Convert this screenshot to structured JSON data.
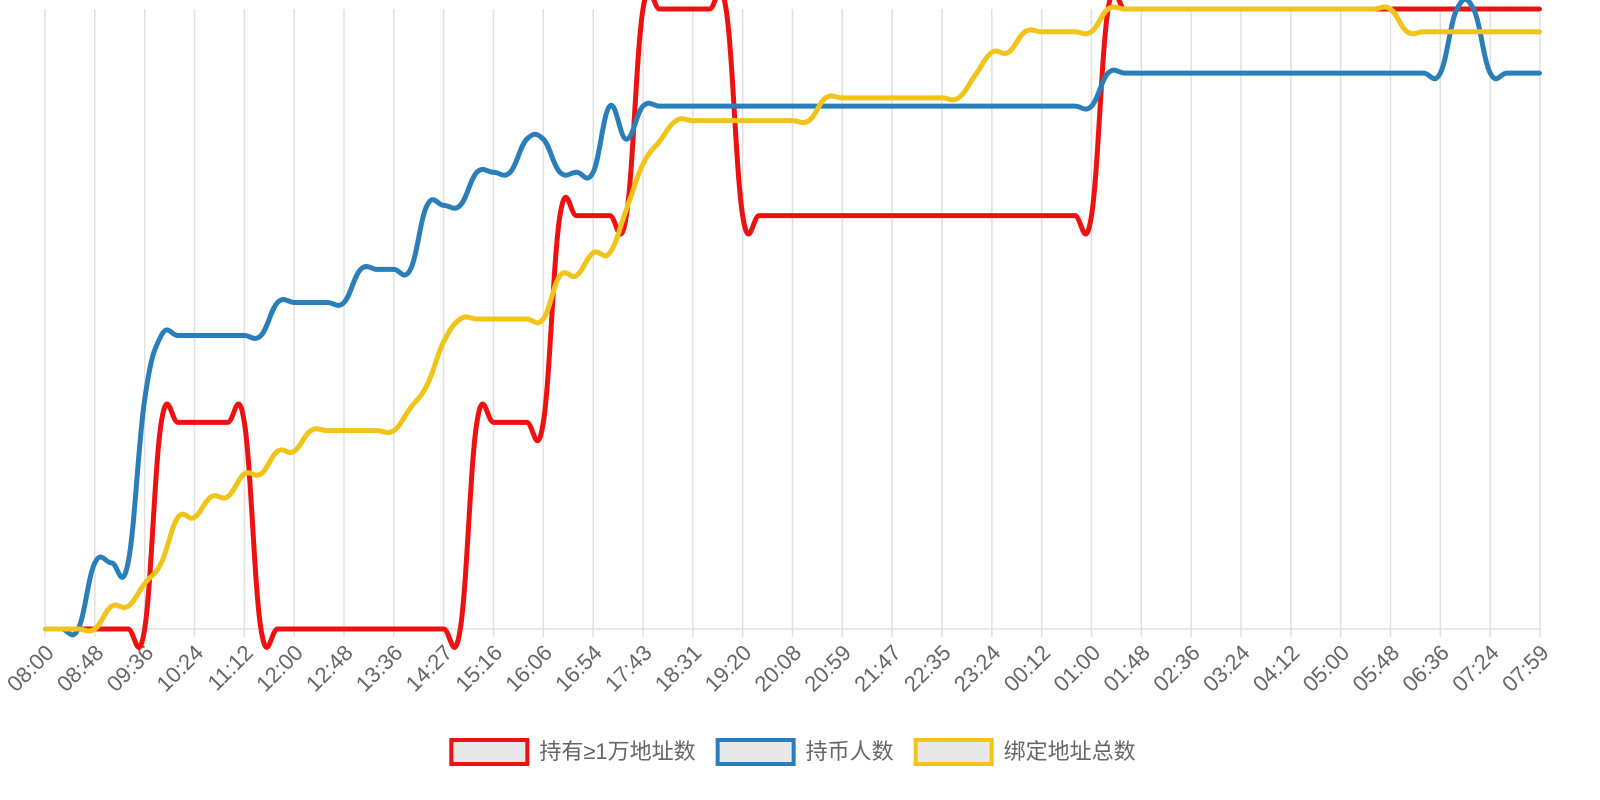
{
  "chart_data": {
    "type": "line",
    "categories": [
      "08:00",
      null,
      null,
      "08:48",
      null,
      null,
      "09:36",
      null,
      null,
      "10:24",
      null,
      null,
      "11:12",
      null,
      null,
      "12:00",
      null,
      null,
      "12:48",
      null,
      null,
      "13:36",
      null,
      null,
      "14:27",
      null,
      null,
      "15:16",
      null,
      null,
      "16:06",
      null,
      null,
      "16:54",
      null,
      null,
      "17:43",
      null,
      null,
      "18:31",
      null,
      null,
      "19:20",
      null,
      null,
      "20:08",
      null,
      null,
      "20:59",
      null,
      null,
      "21:47",
      null,
      null,
      "22:35",
      null,
      null,
      "23:24",
      null,
      null,
      "00:12",
      null,
      null,
      "01:00",
      null,
      null,
      "01:48",
      null,
      null,
      "02:36",
      null,
      null,
      "03:24",
      null,
      null,
      "04:12",
      null,
      null,
      "05:00",
      null,
      null,
      "05:48",
      null,
      null,
      "06:36",
      null,
      null,
      "07:24",
      null,
      null,
      "07:59"
    ],
    "series": [
      {
        "name": "持有≥1万地址数",
        "color": "#ee1111",
        "values": [
          0,
          0,
          0,
          0,
          0,
          0,
          0,
          1,
          1,
          1,
          1,
          1,
          1,
          0,
          0,
          0,
          0,
          0,
          0,
          0,
          0,
          0,
          0,
          0,
          0,
          0,
          1,
          1,
          1,
          1,
          1,
          2,
          2,
          2,
          2,
          2,
          3,
          3,
          3,
          3,
          3,
          3,
          2,
          2,
          2,
          2,
          2,
          2,
          2,
          2,
          2,
          2,
          2,
          2,
          2,
          2,
          2,
          2,
          2,
          2,
          2,
          2,
          2,
          2,
          3,
          3,
          3,
          3,
          3,
          3,
          3,
          3,
          3,
          3,
          3,
          3,
          3,
          3,
          3,
          3,
          3,
          3,
          3,
          3,
          3,
          3,
          3,
          3,
          3,
          3,
          3
        ]
      },
      {
        "name": "持币人数",
        "color": "#2a7fba",
        "values": [
          0,
          0,
          0,
          0.32,
          0.32,
          0.32,
          1.11,
          1.42,
          1.42,
          1.42,
          1.42,
          1.42,
          1.42,
          1.42,
          1.58,
          1.58,
          1.58,
          1.58,
          1.58,
          1.74,
          1.74,
          1.74,
          1.74,
          2.05,
          2.05,
          2.05,
          2.21,
          2.21,
          2.21,
          2.37,
          2.37,
          2.21,
          2.21,
          2.21,
          2.53,
          2.37,
          2.53,
          2.53,
          2.53,
          2.53,
          2.53,
          2.53,
          2.53,
          2.53,
          2.53,
          2.53,
          2.53,
          2.53,
          2.53,
          2.53,
          2.53,
          2.53,
          2.53,
          2.53,
          2.53,
          2.53,
          2.53,
          2.53,
          2.53,
          2.53,
          2.53,
          2.53,
          2.53,
          2.53,
          2.69,
          2.69,
          2.69,
          2.69,
          2.69,
          2.69,
          2.69,
          2.69,
          2.69,
          2.69,
          2.69,
          2.69,
          2.69,
          2.69,
          2.69,
          2.69,
          2.69,
          2.69,
          2.69,
          2.69,
          2.69,
          3,
          3,
          2.69,
          2.69,
          2.69,
          2.69
        ]
      },
      {
        "name": "绑定地址总数",
        "color": "#f0c419",
        "values": [
          0,
          0,
          0,
          0,
          0.11,
          0.11,
          0.22,
          0.32,
          0.54,
          0.54,
          0.64,
          0.64,
          0.75,
          0.75,
          0.86,
          0.86,
          0.96,
          0.96,
          0.96,
          0.96,
          0.96,
          0.96,
          1.07,
          1.18,
          1.39,
          1.5,
          1.5,
          1.5,
          1.5,
          1.5,
          1.5,
          1.71,
          1.71,
          1.82,
          1.82,
          2.03,
          2.25,
          2.36,
          2.46,
          2.46,
          2.46,
          2.46,
          2.46,
          2.46,
          2.46,
          2.46,
          2.46,
          2.57,
          2.57,
          2.57,
          2.57,
          2.57,
          2.57,
          2.57,
          2.57,
          2.57,
          2.68,
          2.79,
          2.79,
          2.89,
          2.89,
          2.89,
          2.89,
          2.89,
          3,
          3,
          3,
          3,
          3,
          3,
          3,
          3,
          3,
          3,
          3,
          3,
          3,
          3,
          3,
          3,
          3,
          3,
          2.89,
          2.89,
          2.89,
          2.89,
          2.89,
          2.89,
          2.89,
          2.89,
          2.89
        ]
      }
    ],
    "ylim": [
      0,
      3
    ],
    "grid": true,
    "legend": "bottom"
  }
}
